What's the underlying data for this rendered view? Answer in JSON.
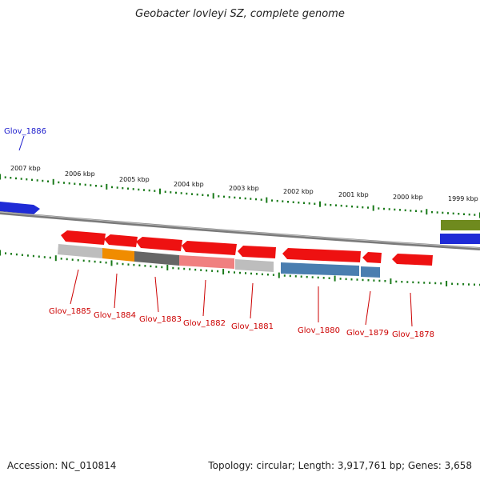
{
  "title": "Geobacter lovleyi SZ, complete genome",
  "footer": {
    "accession": "Accession: NC_010814",
    "summary": "Topology: circular; Length: 3,917,761 bp; Genes: 3,658"
  },
  "colors": {
    "backbone": "#8a8a8a",
    "tick": "#1a7a1a",
    "gene_forward": "#1f2bd6",
    "gene_reverse": "#ee1111",
    "label_forward": "#1a1acc",
    "label_reverse": "#cc0000",
    "cog_gray": "#bdbdbd",
    "cog_orange": "#f08c00",
    "cog_dark": "#666666",
    "cog_pink": "#f08080",
    "cog_blue": "#4a7eb0",
    "cog_olive": "#6f8a1e"
  },
  "scale_labels": [
    "2007 kbp",
    "2006 kbp",
    "2005 kbp",
    "2004 kbp",
    "2003 kbp",
    "2002 kbp",
    "2001 kbp",
    "2000 kbp",
    "1999 kbp"
  ],
  "gene_labels": [
    "Glov_1886",
    "Glov_1885",
    "Glov_1884",
    "Glov_1883",
    "Glov_1882",
    "Glov_1881",
    "Glov_1880",
    "Glov_1879",
    "Glov_1878"
  ]
}
